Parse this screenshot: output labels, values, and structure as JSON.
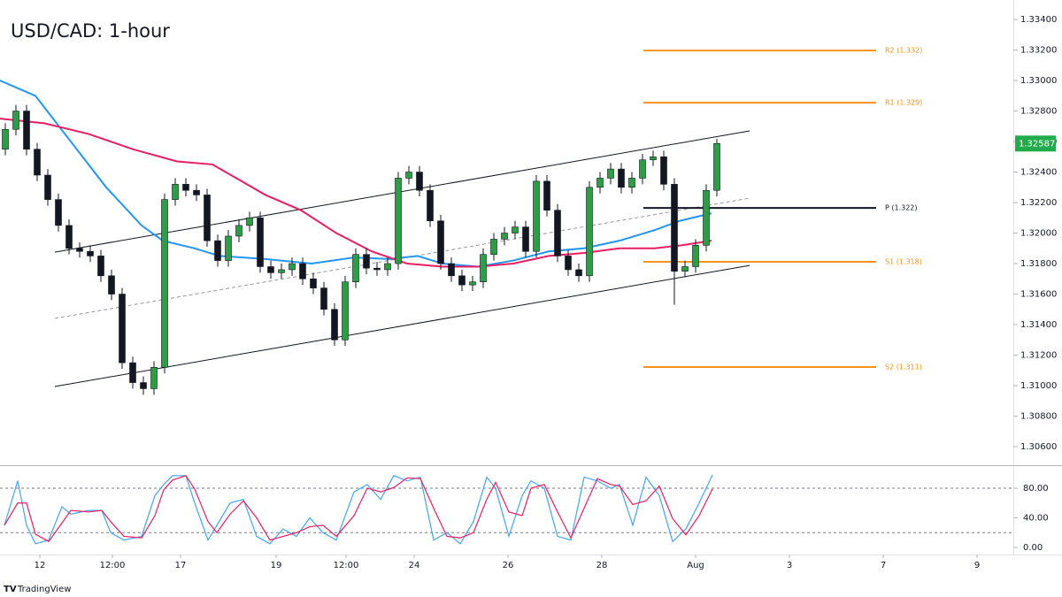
{
  "chart_data": [
    {
      "type": "candlestick",
      "title": "USD/CAD: 1-hour",
      "xlim": [
        0,
        286.25
      ],
      "ylim": [
        1.30484,
        1.33528
      ],
      "yticks": [
        {
          "value": 1.306,
          "label": "1.30600"
        },
        {
          "value": 1.308,
          "label": "1.30800"
        },
        {
          "value": 1.31,
          "label": "1.31000"
        },
        {
          "value": 1.312,
          "label": "1.31200"
        },
        {
          "value": 1.314,
          "label": "1.31400"
        },
        {
          "value": 1.316,
          "label": "1.31600"
        },
        {
          "value": 1.318,
          "label": "1.31800"
        },
        {
          "value": 1.32,
          "label": "1.32000"
        },
        {
          "value": 1.322,
          "label": "1.32200"
        },
        {
          "value": 1.324,
          "label": "1.32400"
        },
        {
          "value": 1.326,
          "label": "1.32600"
        },
        {
          "value": 1.328,
          "label": "1.32800"
        },
        {
          "value": 1.33,
          "label": "1.33000"
        },
        {
          "value": 1.332,
          "label": "1.33200"
        },
        {
          "value": 1.334,
          "label": "1.33400"
        }
      ],
      "up_color": "#2e9e44",
      "down_color": "#131722",
      "last_price_color": "#22ab4b",
      "candles": {
        "x": [
          1.5,
          4.5,
          7.5,
          10.5,
          13.5,
          16.5,
          19.5,
          22.5,
          25.5,
          28.5,
          31.5,
          34.5,
          37.5,
          40.5,
          43.5,
          46.5,
          49.5,
          52.5,
          55.5,
          58.5,
          61.5,
          64.5,
          67.5,
          70.5,
          73.5,
          76.5,
          79.5,
          82.5,
          85.5,
          88.5,
          91.5,
          94.5,
          97.5,
          100.5,
          103.5,
          106.5,
          109.5,
          112.5,
          115.5,
          118.5,
          121.5,
          124.5,
          127.5,
          130.5,
          133.5,
          136.5,
          139.5,
          142.5,
          145.5,
          148.5,
          151.5,
          154.5,
          157.5,
          160.5,
          163.5,
          166.5,
          169.5,
          172.5,
          175.5,
          178.5,
          181.5,
          184.5,
          187.5,
          190.5,
          193.5,
          196.5,
          199.5,
          202.5
        ],
        "open": [
          1.3255,
          1.3268,
          1.328,
          1.3255,
          1.3238,
          1.3222,
          1.3205,
          1.319,
          1.3188,
          1.3185,
          1.3172,
          1.316,
          1.3115,
          1.3102,
          1.3098,
          1.3112,
          1.3222,
          1.3232,
          1.3228,
          1.3225,
          1.3195,
          1.3182,
          1.3198,
          1.3205,
          1.321,
          1.3178,
          1.3174,
          1.3176,
          1.318,
          1.317,
          1.3164,
          1.315,
          1.313,
          1.3168,
          1.3186,
          1.3177,
          1.3176,
          1.318,
          1.3236,
          1.324,
          1.3228,
          1.3208,
          1.318,
          1.3172,
          1.3166,
          1.3168,
          1.3186,
          1.3196,
          1.32,
          1.3204,
          1.3188,
          1.3234,
          1.3215,
          1.3185,
          1.3176,
          1.3172,
          1.323,
          1.3236,
          1.3242,
          1.323,
          1.3236,
          1.3248,
          1.325,
          1.3232,
          1.3175,
          1.3178,
          1.3192,
          1.3228
        ],
        "high": [
          1.3272,
          1.3284,
          1.3284,
          1.3259,
          1.3242,
          1.3226,
          1.3209,
          1.3194,
          1.3192,
          1.3189,
          1.3176,
          1.3164,
          1.3119,
          1.3106,
          1.3116,
          1.3226,
          1.3236,
          1.3236,
          1.3232,
          1.3229,
          1.3199,
          1.3202,
          1.3209,
          1.3214,
          1.3214,
          1.3182,
          1.318,
          1.3184,
          1.3184,
          1.3174,
          1.3168,
          1.3154,
          1.3172,
          1.319,
          1.319,
          1.3181,
          1.3184,
          1.324,
          1.3244,
          1.3244,
          1.3232,
          1.3212,
          1.3184,
          1.3176,
          1.3172,
          1.319,
          1.32,
          1.3204,
          1.3208,
          1.3208,
          1.3238,
          1.3238,
          1.3219,
          1.3189,
          1.318,
          1.3234,
          1.324,
          1.3246,
          1.3246,
          1.324,
          1.3252,
          1.3254,
          1.3254,
          1.3236,
          1.3182,
          1.3196,
          1.3232,
          1.3262
        ],
        "low": [
          1.3251,
          1.3264,
          1.3251,
          1.3234,
          1.3218,
          1.3201,
          1.3186,
          1.3184,
          1.3181,
          1.3168,
          1.3156,
          1.3111,
          1.3098,
          1.3094,
          1.3094,
          1.3108,
          1.3218,
          1.3224,
          1.3221,
          1.3191,
          1.3178,
          1.3178,
          1.3194,
          1.3201,
          1.3174,
          1.317,
          1.317,
          1.3172,
          1.3166,
          1.316,
          1.3146,
          1.3126,
          1.3126,
          1.3164,
          1.3173,
          1.3172,
          1.3172,
          1.3176,
          1.3232,
          1.3224,
          1.3204,
          1.3176,
          1.3168,
          1.3162,
          1.3162,
          1.3164,
          1.3182,
          1.3192,
          1.3196,
          1.3184,
          1.3184,
          1.3211,
          1.3181,
          1.3172,
          1.3168,
          1.3168,
          1.3226,
          1.3232,
          1.3226,
          1.3226,
          1.3232,
          1.3244,
          1.3228,
          1.3153,
          1.3171,
          1.3174,
          1.3188,
          1.3224
        ],
        "close": [
          1.3268,
          1.328,
          1.3255,
          1.3238,
          1.3222,
          1.3205,
          1.319,
          1.3188,
          1.3185,
          1.3172,
          1.316,
          1.3115,
          1.3102,
          1.3098,
          1.3112,
          1.3222,
          1.3232,
          1.3228,
          1.3225,
          1.3195,
          1.3182,
          1.3198,
          1.3205,
          1.321,
          1.3178,
          1.3174,
          1.3176,
          1.318,
          1.317,
          1.3164,
          1.315,
          1.313,
          1.3168,
          1.3186,
          1.3177,
          1.3176,
          1.318,
          1.3236,
          1.324,
          1.3228,
          1.3208,
          1.318,
          1.3172,
          1.3166,
          1.3168,
          1.3186,
          1.3196,
          1.32,
          1.3204,
          1.3188,
          1.3234,
          1.3215,
          1.3185,
          1.3176,
          1.3172,
          1.323,
          1.3236,
          1.3242,
          1.323,
          1.3236,
          1.3248,
          1.325,
          1.3232,
          1.3175,
          1.3178,
          1.3192,
          1.3228,
          1.32587
        ]
      },
      "series": [
        {
          "color": "#2196f3",
          "x": [
            0,
            10,
            20,
            30,
            40,
            46,
            55,
            62,
            75,
            88,
            100,
            110,
            118,
            125,
            135,
            145,
            155,
            165,
            175,
            185,
            192,
            201
          ],
          "values": [
            1.33,
            1.329,
            1.326,
            1.323,
            1.3205,
            1.3195,
            1.319,
            1.3185,
            1.3183,
            1.318,
            1.3184,
            1.3183,
            1.3185,
            1.318,
            1.3178,
            1.3182,
            1.3188,
            1.319,
            1.3195,
            1.3202,
            1.3208,
            1.3213
          ]
        },
        {
          "color": "#e91e63",
          "x": [
            0,
            12.5,
            25,
            37.5,
            50,
            60,
            67.5,
            75,
            85,
            95,
            105,
            115,
            125,
            135,
            145,
            155,
            165,
            175,
            185,
            192.5,
            201
          ],
          "values": [
            1.3275,
            1.3272,
            1.3265,
            1.3255,
            1.3247,
            1.3245,
            1.3235,
            1.3225,
            1.3215,
            1.32,
            1.3188,
            1.318,
            1.3178,
            1.3178,
            1.318,
            1.3185,
            1.3187,
            1.319,
            1.319,
            1.3192,
            1.3195
          ]
        }
      ],
      "trendlines": [
        {
          "x": [
            15.5,
            211.75
          ],
          "y": [
            1.31875,
            1.3267
          ],
          "color": "#131722",
          "dashed": false
        },
        {
          "x": [
            15.5,
            211.75
          ],
          "y": [
            1.30994,
            1.31788
          ],
          "color": "#131722",
          "dashed": false
        },
        {
          "x": [
            15.5,
            211.75
          ],
          "y": [
            1.31441,
            1.32229
          ],
          "color": "#9598a1",
          "dashed": true
        }
      ],
      "level_x": [
        181.75,
        247.5
      ],
      "levels": [
        {
          "label": "R2 (1.332)",
          "value": 1.33197,
          "color": "#f7931a"
        },
        {
          "label": "R1 (1.329)",
          "value": 1.32855,
          "color": "#f7931a"
        },
        {
          "label": "P (1.322)",
          "value": 1.32165,
          "color": "#131722"
        },
        {
          "label": "S1 (1.318)",
          "value": 1.31812,
          "color": "#f7931a"
        },
        {
          "label": "S2 (1.311)",
          "value": 1.31122,
          "color": "#f7931a"
        }
      ],
      "watermark": "TradingView"
    },
    {
      "type": "line",
      "xlim": [
        0,
        286.25
      ],
      "ylim": [
        -9.55,
        109.9
      ],
      "xticks": [
        {
          "value": 11.25,
          "label": "12"
        },
        {
          "value": 31.75,
          "label": "12:00"
        },
        {
          "value": 51,
          "label": "17"
        },
        {
          "value": 78,
          "label": "19"
        },
        {
          "value": 97.75,
          "label": "12:00"
        },
        {
          "value": 117,
          "label": "24"
        },
        {
          "value": 143.5,
          "label": "26"
        },
        {
          "value": 170,
          "label": "28"
        },
        {
          "value": 196.5,
          "label": "Aug"
        },
        {
          "value": 223,
          "label": "3"
        },
        {
          "value": 249.5,
          "label": "7"
        },
        {
          "value": 276,
          "label": "9"
        }
      ],
      "yticks": [
        {
          "value": 0,
          "label": "0.00"
        },
        {
          "value": 40,
          "label": "40.00"
        },
        {
          "value": 80,
          "label": "80.00"
        }
      ],
      "bands": [
        20,
        80
      ],
      "series": [
        {
          "color": "#42a5f5",
          "x": [
            1.25,
            5,
            7.5,
            10,
            13.75,
            17.5,
            20,
            25,
            28.75,
            31.25,
            35,
            40,
            43.75,
            46.25,
            48.75,
            52.5,
            55,
            58.75,
            61.25,
            65,
            68.75,
            72.5,
            76.25,
            80,
            83.75,
            87.5,
            91.25,
            95,
            100,
            103.75,
            107.5,
            111.25,
            115,
            118.75,
            122.5,
            126.25,
            130,
            133.75,
            137.5,
            140,
            143.75,
            147.5,
            150,
            153.75,
            157.5,
            161.25,
            165,
            168.75,
            172.5,
            175,
            178.75,
            182.5,
            186.25,
            190,
            193.75,
            197.5,
            201.25
          ],
          "values": [
            30,
            90,
            30,
            5,
            10,
            55,
            45,
            50,
            50,
            20,
            10,
            15,
            70,
            85,
            97,
            97,
            60,
            10,
            30,
            60,
            65,
            15,
            5,
            25,
            15,
            40,
            20,
            10,
            75,
            85,
            65,
            97,
            90,
            95,
            10,
            20,
            5,
            35,
            95,
            80,
            15,
            70,
            90,
            80,
            15,
            10,
            95,
            90,
            80,
            85,
            30,
            95,
            70,
            8,
            25,
            60,
            98
          ]
        },
        {
          "color": "#e91e63",
          "x": [
            1.25,
            5,
            7.5,
            10,
            13.75,
            17.5,
            20,
            25,
            28.75,
            31.25,
            35,
            40,
            43.75,
            46.25,
            48.75,
            52.5,
            55,
            58.75,
            61.25,
            65,
            68.75,
            72.5,
            76.25,
            80,
            83.75,
            87.5,
            91.25,
            95,
            100,
            103.75,
            107.5,
            111.25,
            115,
            118.75,
            122.5,
            126.25,
            130,
            133.75,
            137.5,
            140,
            143.75,
            147.5,
            150,
            153.75,
            157.5,
            161.25,
            165,
            168.75,
            172.5,
            175,
            178.75,
            182.5,
            186.25,
            190,
            193.75,
            197.5,
            201.25
          ],
          "values": [
            30,
            60,
            60,
            18,
            8,
            33,
            50,
            48,
            50,
            35,
            15,
            13,
            43,
            78,
            91,
            97,
            79,
            35,
            20,
            45,
            63,
            40,
            10,
            15,
            20,
            28,
            30,
            15,
            43,
            80,
            75,
            81,
            94,
            93,
            53,
            15,
            13,
            20,
            65,
            88,
            48,
            43,
            80,
            85,
            48,
            13,
            53,
            93,
            85,
            83,
            58,
            63,
            83,
            39,
            17,
            43,
            79
          ]
        }
      ]
    }
  ]
}
